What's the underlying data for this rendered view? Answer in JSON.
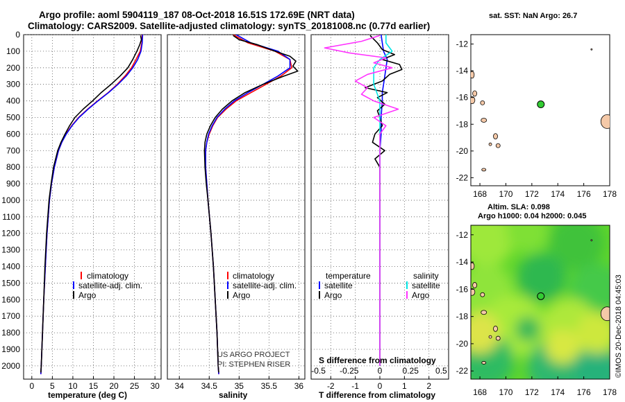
{
  "header": {
    "title_line1": "Argo profile: aoml 5904119_187 08-Oct-2018 16.51S 172.69E (NRT data)",
    "title_line2": "Climatology: CARS2009. Satellite-adjusted climatology: synTS_20181008.nc (0.77d earlier)"
  },
  "colors": {
    "climatology": "#ff0000",
    "satellite": "#0000ff",
    "argo": "#000000",
    "sal_satellite": "#00e5e5",
    "sal_argo": "#ff33ff",
    "land": "#f5c9a8"
  },
  "depth_ticks": [
    "0",
    "100",
    "200",
    "300",
    "400",
    "500",
    "600",
    "700",
    "800",
    "900",
    "1000",
    "1100",
    "1200",
    "1300",
    "1400",
    "1500",
    "1600",
    "1700",
    "1800",
    "1900",
    "2000"
  ],
  "panel_temperature": {
    "xlabel": "temperature (deg C)",
    "ticks": [
      "0",
      "5",
      "10",
      "15",
      "20",
      "25",
      "30"
    ],
    "legend": [
      "climatology",
      "satellite-adj. clim.",
      "Argo"
    ]
  },
  "panel_salinity": {
    "xlabel": "salinity",
    "ticks": [
      "34",
      "34.5",
      "35",
      "35.5",
      "36"
    ],
    "legend": [
      "climatology",
      "satellite-adj. clim.",
      "Argo"
    ],
    "credit1": "US ARGO PROJECT",
    "credit2": "PI: STEPHEN RISER"
  },
  "panel_difference": {
    "xlabel": "T difference from climatology",
    "ticks": [
      "-2",
      "-1",
      "0",
      "1",
      "2"
    ],
    "s_title": "S difference from climatology",
    "s_ticks": [
      "-0.5",
      "-0.25",
      "0",
      "0.25",
      "0.5"
    ],
    "temp_header": "temperature",
    "sal_header": "salinity",
    "temp_legend": [
      "satellite",
      "Argo"
    ],
    "sal_legend": [
      "satellite",
      "Argo"
    ]
  },
  "map_sst": {
    "title": "sat. SST: NaN Argo: 26.7",
    "lat_ticks": [
      "-12",
      "-14",
      "-16",
      "-18",
      "-20",
      "-22"
    ],
    "lon_ticks": [
      "168",
      "170",
      "172",
      "174",
      "176",
      "178"
    ]
  },
  "map_sla": {
    "title1": "Altim. SLA: 0.098",
    "title2": "Argo h1000: 0.04 h2000: 0.045",
    "lat_ticks": [
      "-12",
      "-14",
      "-16",
      "-18",
      "-20",
      "-22"
    ],
    "lon_ticks": [
      "168",
      "170",
      "172",
      "174",
      "176",
      "178"
    ],
    "stamp": "©IMOS 20-Dec-2018 04:45:03"
  },
  "chart_data": [
    {
      "type": "line",
      "title": "",
      "xlabel": "temperature (deg C)",
      "ylabel": "",
      "xlim": [
        -2,
        31.5
      ],
      "ylim": [
        2080,
        0
      ],
      "series": [
        {
          "name": "climatology",
          "depth": [
            0,
            50,
            100,
            150,
            200,
            250,
            300,
            350,
            400,
            450,
            500,
            550,
            600,
            650,
            700,
            800,
            900,
            1000,
            1200,
            1400,
            1600,
            1800,
            2000,
            2050
          ],
          "values": [
            26.9,
            26.8,
            26.4,
            25.4,
            24.3,
            22.7,
            20.8,
            18.6,
            16.0,
            13.6,
            11.4,
            9.7,
            8.3,
            7.3,
            6.5,
            5.5,
            4.8,
            4.3,
            3.7,
            3.3,
            2.9,
            2.6,
            2.3,
            2.2
          ]
        },
        {
          "name": "satellite-adj. clim.",
          "depth": [
            0,
            50,
            100,
            150,
            200,
            250,
            300,
            350,
            400,
            450,
            500,
            550,
            600,
            650,
            700,
            800,
            900,
            1000,
            1200,
            1400,
            1600,
            1800,
            2000,
            2050
          ],
          "values": [
            27.0,
            26.9,
            26.6,
            25.8,
            24.6,
            23.0,
            21.0,
            18.7,
            16.1,
            13.7,
            11.5,
            9.8,
            8.4,
            7.3,
            6.5,
            5.5,
            4.8,
            4.3,
            3.7,
            3.3,
            2.9,
            2.6,
            2.3,
            2.2
          ]
        },
        {
          "name": "Argo",
          "depth": [
            5,
            30,
            60,
            100,
            150,
            200,
            250,
            300,
            350,
            400,
            450,
            500,
            550,
            600,
            650,
            700,
            800,
            900,
            1000,
            1200,
            1400,
            1600,
            1800,
            2000,
            2040
          ],
          "values": [
            26.5,
            26.7,
            26.3,
            25.6,
            24.6,
            23.4,
            21.5,
            19.3,
            16.9,
            14.8,
            12.5,
            10.5,
            9.2,
            8.1,
            7.1,
            6.3,
            5.3,
            4.7,
            4.2,
            3.6,
            3.2,
            2.9,
            2.6,
            2.3,
            2.2
          ]
        }
      ]
    },
    {
      "type": "line",
      "title": "",
      "xlabel": "salinity",
      "ylabel": "",
      "xlim": [
        33.8,
        36.1
      ],
      "ylim": [
        2080,
        0
      ],
      "series": [
        {
          "name": "climatology",
          "depth": [
            0,
            50,
            100,
            150,
            200,
            250,
            300,
            350,
            400,
            450,
            500,
            550,
            600,
            650,
            700,
            800,
            900,
            1000,
            1200,
            1400,
            1600,
            1800,
            2000,
            2050
          ],
          "values": [
            34.9,
            35.15,
            35.6,
            35.85,
            35.88,
            35.7,
            35.45,
            35.2,
            34.95,
            34.78,
            34.64,
            34.56,
            34.5,
            34.46,
            34.44,
            34.44,
            34.46,
            34.48,
            34.53,
            34.57,
            34.6,
            34.63,
            34.65,
            34.66
          ]
        },
        {
          "name": "satellite-adj. clim.",
          "depth": [
            0,
            50,
            100,
            150,
            200,
            250,
            300,
            350,
            400,
            450,
            500,
            550,
            600,
            650,
            700,
            800,
            900,
            1000,
            1200,
            1400,
            1600,
            1800,
            2000,
            2050
          ],
          "values": [
            34.95,
            35.2,
            35.65,
            35.85,
            35.85,
            35.65,
            35.4,
            35.15,
            34.92,
            34.76,
            34.63,
            34.55,
            34.49,
            34.46,
            34.44,
            34.44,
            34.46,
            34.48,
            34.53,
            34.57,
            34.6,
            34.63,
            34.65,
            34.66
          ]
        },
        {
          "name": "Argo",
          "depth": [
            5,
            30,
            60,
            100,
            130,
            160,
            190,
            220,
            250,
            300,
            350,
            400,
            450,
            500,
            550,
            600,
            650,
            700,
            800,
            900,
            1000,
            1200,
            1400,
            1600,
            1800,
            2000,
            2040
          ],
          "values": [
            34.9,
            35.0,
            35.3,
            35.6,
            35.85,
            35.95,
            35.9,
            35.98,
            35.75,
            35.4,
            35.1,
            34.88,
            34.72,
            34.6,
            34.52,
            34.46,
            34.43,
            34.42,
            34.43,
            34.45,
            34.48,
            34.53,
            34.57,
            34.6,
            34.63,
            34.65,
            34.66
          ]
        }
      ]
    },
    {
      "type": "line",
      "title": "",
      "xlabel": "T difference from climatology",
      "ylabel": "",
      "xlim": [
        -2.8,
        2.8
      ],
      "ylim": [
        2080,
        0
      ],
      "series": [
        {
          "name": "temperature satellite",
          "depth": [
            0,
            50,
            100,
            150,
            200,
            250,
            300,
            350,
            400,
            500,
            600,
            700,
            800,
            1000,
            1500,
            2000
          ],
          "values": [
            0.05,
            0.1,
            0.15,
            0.3,
            0.25,
            0.2,
            0.15,
            0.1,
            0.1,
            0.05,
            0.05,
            0.0,
            0.0,
            0.0,
            0.0,
            0.0
          ]
        },
        {
          "name": "temperature Argo",
          "depth": [
            5,
            50,
            90,
            120,
            150,
            180,
            210,
            240,
            280,
            320,
            350,
            380,
            420,
            460,
            500,
            550,
            600,
            650,
            700,
            750,
            800,
            900,
            1000,
            1500,
            2000
          ],
          "values": [
            -0.4,
            -0.1,
            0.1,
            0.6,
            0.1,
            0.8,
            0.9,
            0.4,
            0.1,
            -0.6,
            0.3,
            -0.1,
            0.2,
            -0.1,
            0.0,
            0.1,
            -0.2,
            -0.3,
            0.2,
            -0.2,
            0.0,
            0.0,
            0.0,
            0.0,
            0.0
          ]
        },
        {
          "name": "salinity satellite",
          "depth": [
            0,
            50,
            100,
            150,
            200,
            300,
            400,
            500,
            600,
            700,
            800,
            1000,
            1500,
            2000
          ],
          "values": [
            0.05,
            0.05,
            0.1,
            0.0,
            -0.05,
            -0.05,
            0.0,
            0.0,
            0.0,
            0.0,
            0.0,
            0.0,
            0.0,
            0.0
          ]
        },
        {
          "name": "salinity Argo",
          "depth": [
            5,
            40,
            80,
            110,
            140,
            170,
            200,
            240,
            280,
            320,
            360,
            400,
            450,
            500,
            550,
            600,
            650,
            700,
            750,
            800,
            900,
            1000,
            1500,
            2000
          ],
          "values": [
            0.0,
            -0.15,
            -0.45,
            -0.25,
            0.05,
            -0.05,
            0.1,
            -0.1,
            -0.2,
            -0.1,
            -0.15,
            -0.05,
            0.15,
            -0.05,
            0.05,
            0.0,
            0.0,
            0.0,
            0.0,
            0.0,
            0.0,
            0.0,
            0.0,
            0.0
          ]
        }
      ]
    },
    {
      "type": "scatter",
      "title": "sat. SST: NaN Argo: 26.7",
      "xlabel": "",
      "ylabel": "",
      "xlim": [
        167.3,
        178
      ],
      "ylim": [
        -22.6,
        -11.3
      ],
      "x": [
        172.69
      ],
      "y": [
        -16.51
      ]
    },
    {
      "type": "heatmap",
      "title": "Altim. SLA: 0.098 / Argo h1000: 0.04 h2000: 0.045",
      "xlabel": "",
      "ylabel": "",
      "xlim": [
        167.3,
        178
      ],
      "ylim": [
        -22.6,
        -11.3
      ],
      "x": [
        172.69
      ],
      "y": [
        -16.51
      ]
    }
  ]
}
